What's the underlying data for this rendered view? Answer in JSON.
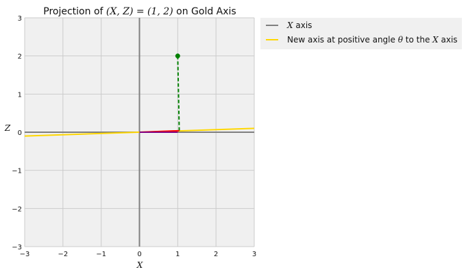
{
  "chart_data": {
    "type": "line",
    "title": {
      "prefix": "Projection of ",
      "math1": "(X, Z) = (1, 2)",
      "suffix": " on Gold Axis"
    },
    "xlabel": "X",
    "ylabel": "Z",
    "xlim": [
      -3,
      3
    ],
    "ylim": [
      -3,
      3
    ],
    "xticks": [
      -3,
      -2,
      -1,
      0,
      1,
      2,
      3
    ],
    "yticks": [
      -3,
      -2,
      -1,
      0,
      1,
      2,
      3
    ],
    "grid": true,
    "legend_position": "outside-top-right",
    "series": [
      {
        "name": "X axis",
        "legend_parts": {
          "math": "X",
          "text": " axis"
        },
        "color": "#7f7f7f",
        "style": "solid",
        "x": [
          -3,
          3
        ],
        "y": [
          0,
          0
        ]
      },
      {
        "name": "New axis at positive angle θ to the X axis",
        "legend_parts": {
          "text1": "New axis at positive angle ",
          "math1": "θ",
          "text2": " to the ",
          "math2": "X",
          "text3": " axis"
        },
        "color": "#ffd700",
        "style": "solid",
        "x": [
          -3,
          3
        ],
        "y": [
          -0.1,
          0.1
        ]
      }
    ],
    "extra_lines": [
      {
        "label": "z-axis",
        "color": "#7f7f7f",
        "style": "solid",
        "x": [
          0,
          0
        ],
        "y": [
          -3,
          3
        ]
      },
      {
        "label": "projection-dashed",
        "color": "#008000",
        "style": "dashed",
        "x": [
          1,
          1.04
        ],
        "y": [
          2,
          0.04
        ]
      },
      {
        "label": "projection-vector",
        "color": "#ff0000",
        "style": "solid",
        "x": [
          0,
          1.04
        ],
        "y": [
          0,
          0.04
        ]
      },
      {
        "label": "original-x-vector",
        "color": "#800080",
        "style": "solid",
        "x": [
          0,
          1
        ],
        "y": [
          0,
          0
        ]
      }
    ],
    "points": [
      {
        "x": 1,
        "y": 2,
        "color": "#008000"
      }
    ]
  }
}
